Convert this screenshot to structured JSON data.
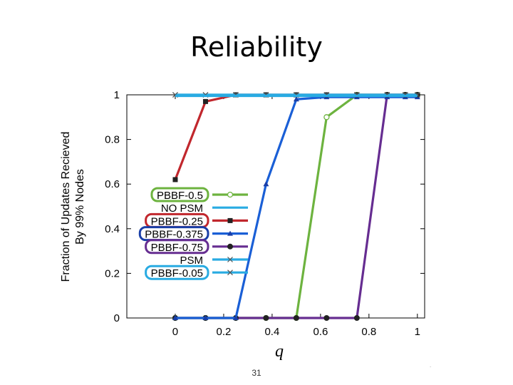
{
  "slide": {
    "title": "Reliability",
    "page_number": "31",
    "corner_mark": "."
  },
  "chart_data": {
    "type": "line",
    "xlabel": "q",
    "ylabel": "Fraction of Updates Recieved",
    "ylabel2": "By 99% Nodes",
    "xlim": [
      -0.2,
      1.03
    ],
    "ylim": [
      0,
      1
    ],
    "xticks": [
      0,
      0.2,
      0.4,
      0.6,
      0.8,
      1
    ],
    "xtick_labels": [
      "0",
      "0.2",
      "0.4",
      "0.6",
      "0.8",
      "1"
    ],
    "yticks": [
      0,
      0.2,
      0.4,
      0.6,
      0.8,
      1
    ],
    "ytick_labels": [
      "0",
      "0.2",
      "0.4",
      "0.6",
      "0.8",
      "1"
    ],
    "legend_position": "left",
    "series": [
      {
        "name": "PBBF-0.5",
        "color": "#6db33f",
        "outline": "#6db33f",
        "marker": "circle-open",
        "x": [
          0,
          0.125,
          0.25,
          0.375,
          0.5,
          0.625,
          0.75,
          0.875,
          0.95,
          1
        ],
        "y": [
          0,
          0,
          0,
          0,
          0,
          0.9,
          1,
          1,
          1,
          1
        ]
      },
      {
        "name": "NO PSM",
        "color": "#29abe2",
        "outline": "none",
        "marker": "none",
        "x": [
          0,
          1
        ],
        "y": [
          0.995,
          0.995
        ]
      },
      {
        "name": "PBBF-0.25",
        "color": "#c1272d",
        "outline": "#c1272d",
        "marker": "square",
        "x": [
          0,
          0.125,
          0.25,
          0.375,
          0.5,
          0.625,
          0.75,
          0.875,
          0.95,
          1
        ],
        "y": [
          0.62,
          0.97,
          1,
          1,
          1,
          1,
          1,
          1,
          1,
          1
        ]
      },
      {
        "name": "PBBF-0.375",
        "color": "#1a5fd6",
        "outline": "#1a3fa8",
        "marker": "triangle",
        "x": [
          0,
          0.125,
          0.25,
          0.375,
          0.5,
          0.625,
          0.75,
          0.875,
          0.95,
          1
        ],
        "y": [
          0,
          0,
          0,
          0.6,
          0.98,
          0.99,
          0.99,
          0.99,
          0.99,
          0.99
        ]
      },
      {
        "name": "PBBF-0.75",
        "color": "#662d91",
        "outline": "#662d91",
        "marker": "circle",
        "x": [
          0,
          0.125,
          0.25,
          0.375,
          0.5,
          0.625,
          0.75,
          0.875,
          0.95,
          1
        ],
        "y": [
          0,
          0,
          0,
          0,
          0,
          0,
          0,
          1,
          1,
          1
        ]
      },
      {
        "name": "PSM",
        "color": "#29abe2",
        "outline": "none",
        "marker": "x",
        "x": [
          0,
          0.125,
          0.25,
          0.375,
          0.5,
          0.625,
          0.75,
          0.875,
          0.95,
          1
        ],
        "y": [
          1,
          1,
          1,
          1,
          1,
          1,
          1,
          1,
          1,
          1
        ]
      },
      {
        "name": "PBBF-0.05",
        "color": "#29abe2",
        "outline": "#29abe2",
        "marker": "x",
        "x": [
          0,
          0.125,
          0.25,
          0.375,
          0.5,
          0.625,
          0.75,
          0.875,
          0.95,
          1
        ],
        "y": [
          1,
          1,
          1,
          1,
          1,
          1,
          1,
          1,
          1,
          1
        ]
      }
    ]
  }
}
